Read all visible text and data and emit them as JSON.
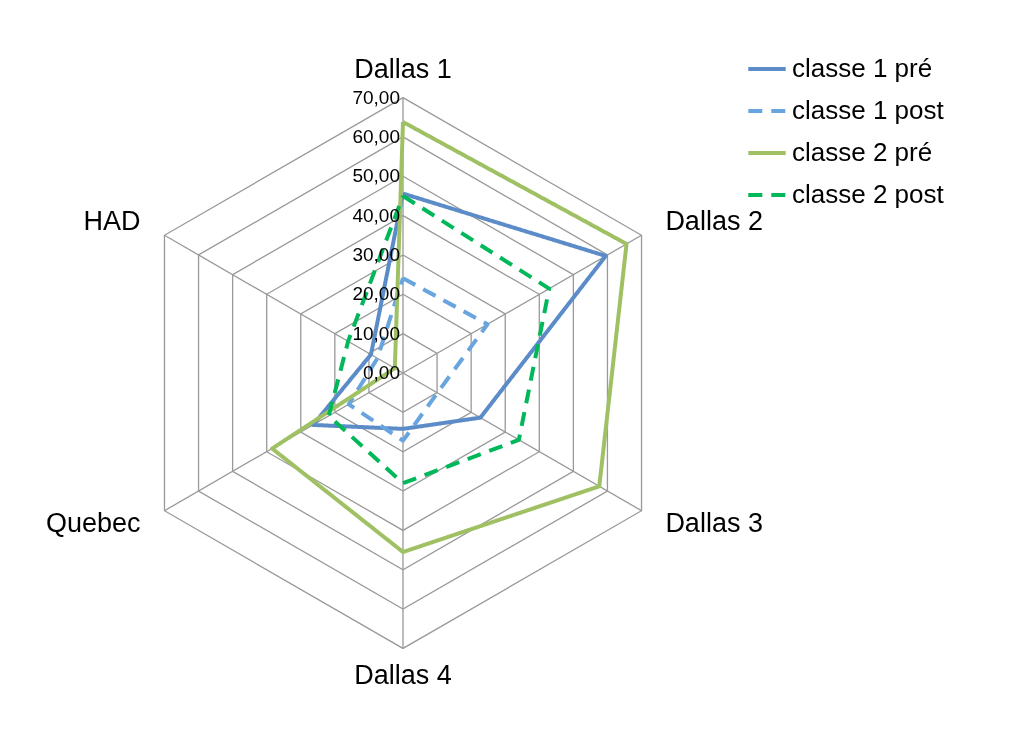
{
  "chart_data": {
    "type": "radar",
    "categories": [
      "Dallas 1",
      "Dallas 2",
      "Dallas 3",
      "Dallas 4",
      "Quebec",
      "HAD"
    ],
    "ylim": [
      0,
      70
    ],
    "yticks": [
      {
        "value": 0,
        "label": "0,00"
      },
      {
        "value": 10,
        "label": "10,00"
      },
      {
        "value": 20,
        "label": "20,00"
      },
      {
        "value": 30,
        "label": "30,00"
      },
      {
        "value": 40,
        "label": "40,00"
      },
      {
        "value": 50,
        "label": "50,00"
      },
      {
        "value": 60,
        "label": "60,00"
      },
      {
        "value": 70,
        "label": "70,00"
      }
    ],
    "grid": true,
    "legend": "right",
    "series": [
      {
        "name": "classe 1 pré",
        "color": "#5b8cc8",
        "line_style": "solid",
        "values": [
          45.6,
          59.5,
          22.7,
          14.2,
          26.4,
          9.4
        ]
      },
      {
        "name": "classe 1 post",
        "color": "#68a4de",
        "line_style": "dashed",
        "values": [
          24.1,
          24.8,
          10.1,
          17.2,
          15.9,
          7.5
        ]
      },
      {
        "name": "classe 2 pré",
        "color": "#9fc163",
        "line_style": "solid",
        "values": [
          63.8,
          65.6,
          57.6,
          45.5,
          38.4,
          2.4
        ]
      },
      {
        "name": "classe 2 post",
        "color": "#00b85a",
        "line_style": "dashed",
        "values": [
          45.0,
          42.9,
          34.0,
          28.0,
          21.8,
          16.1
        ]
      }
    ]
  }
}
